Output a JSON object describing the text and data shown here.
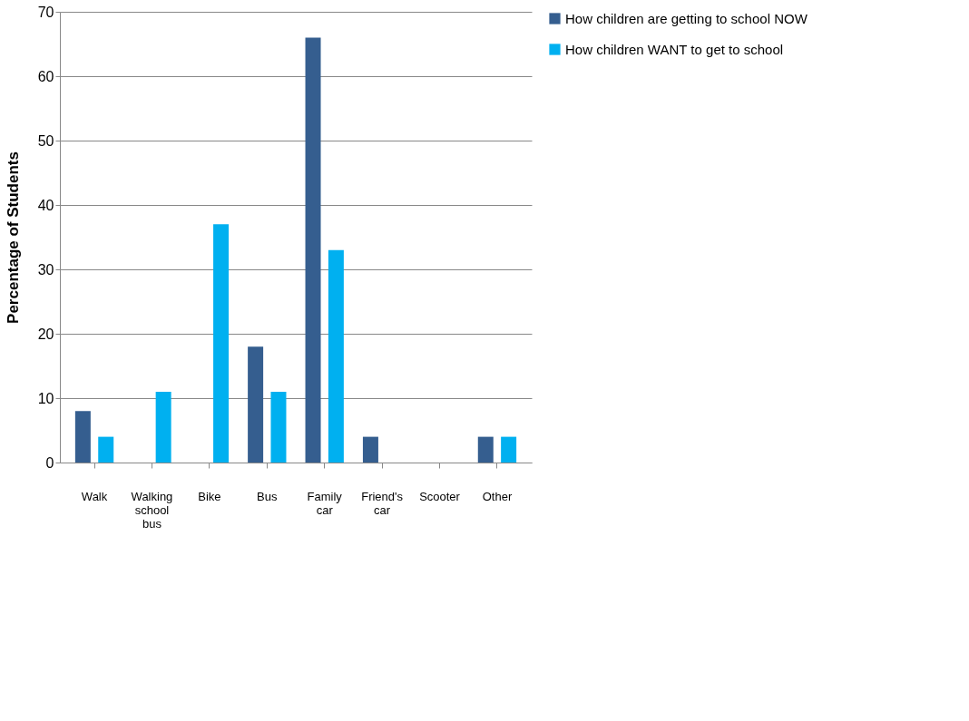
{
  "chart_data": {
    "type": "bar",
    "ylabel": "Percentage of Students",
    "categories": [
      "Walk",
      "Walking school bus",
      "Bike",
      "Bus",
      "Family car",
      "Friend's car",
      "Scooter",
      "Other"
    ],
    "series": [
      {
        "name": "How children are getting to school NOW",
        "color": "#355e8f",
        "values": [
          8,
          0,
          0,
          18,
          66,
          4,
          0,
          4
        ]
      },
      {
        "name": "How children WANT to get to school",
        "color": "#00b0f0",
        "values": [
          4,
          11,
          37,
          11,
          33,
          0,
          0,
          4
        ]
      }
    ],
    "ylim": [
      0,
      70
    ],
    "yticks": [
      0,
      10,
      20,
      30,
      40,
      50,
      60,
      70
    ],
    "grid": "y",
    "legend": "right"
  }
}
